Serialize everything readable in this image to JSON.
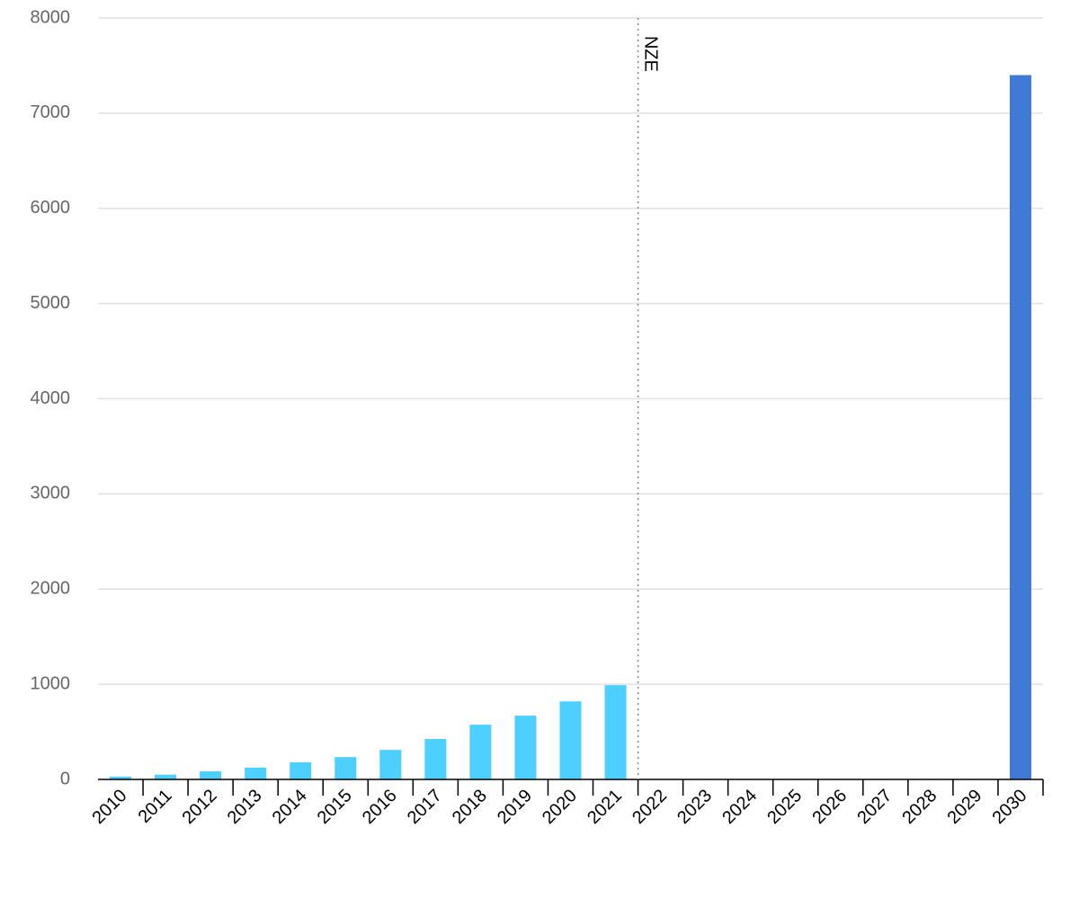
{
  "chart_data": {
    "type": "bar",
    "categories": [
      "2010",
      "2011",
      "2012",
      "2013",
      "2014",
      "2015",
      "2016",
      "2017",
      "2018",
      "2019",
      "2020",
      "2021",
      "2022",
      "2023",
      "2024",
      "2025",
      "2026",
      "2027",
      "2028",
      "2029",
      "2030"
    ],
    "values": [
      30,
      50,
      85,
      125,
      180,
      235,
      310,
      425,
      575,
      670,
      820,
      990,
      null,
      null,
      null,
      null,
      null,
      null,
      null,
      null,
      7400
    ],
    "colors": [
      "#4dd0ff",
      "#4dd0ff",
      "#4dd0ff",
      "#4dd0ff",
      "#4dd0ff",
      "#4dd0ff",
      "#4dd0ff",
      "#4dd0ff",
      "#4dd0ff",
      "#4dd0ff",
      "#4dd0ff",
      "#4dd0ff",
      "#4dd0ff",
      "#4dd0ff",
      "#4dd0ff",
      "#4dd0ff",
      "#4dd0ff",
      "#4dd0ff",
      "#4dd0ff",
      "#4dd0ff",
      "#3f7bd6"
    ],
    "ylim": [
      0,
      8000
    ],
    "yticks": [
      0,
      1000,
      2000,
      3000,
      4000,
      5000,
      6000,
      7000,
      8000
    ],
    "grid": true,
    "annotation": {
      "label": "NZE",
      "at": "2022"
    }
  }
}
